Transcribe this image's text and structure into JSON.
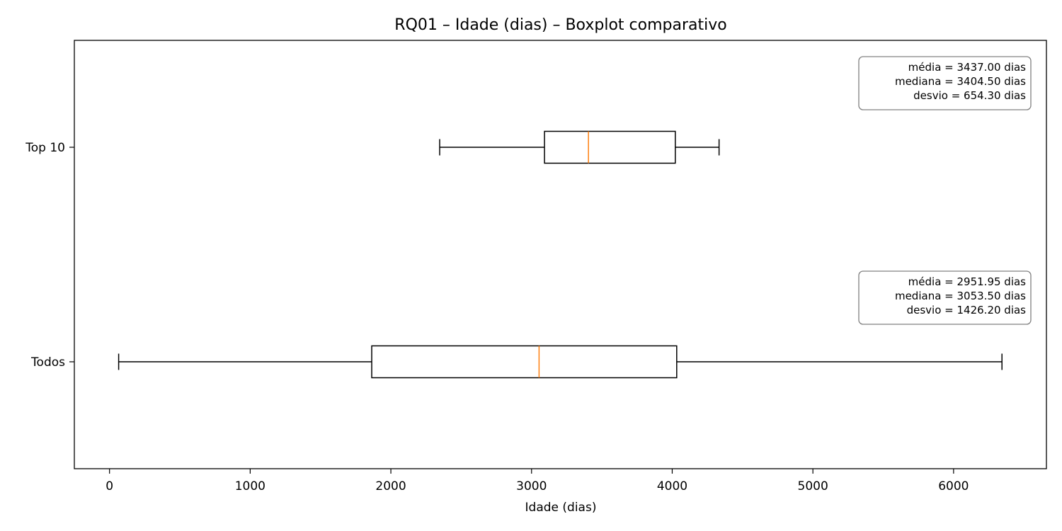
{
  "chart_data": {
    "type": "boxplot",
    "title": "RQ01 – Idade (dias) – Boxplot comparativo",
    "xlabel": "Idade (dias)",
    "ylabel": "",
    "orientation": "horizontal",
    "xlim": [
      -250,
      6660
    ],
    "xticks": [
      0,
      1000,
      2000,
      3000,
      4000,
      5000,
      6000
    ],
    "xtick_labels": [
      "0",
      "1000",
      "2000",
      "3000",
      "4000",
      "5000",
      "6000"
    ],
    "grid": false,
    "median_color": "#ff7f0e",
    "box_color": "#000000",
    "series": [
      {
        "name": "Top 10",
        "whisker_low": 2347,
        "q1": 3092,
        "median": 3404.5,
        "q3": 4022,
        "whisker_high": 4333,
        "stats_lines": [
          "média = 3437.00 dias",
          "mediana = 3404.50 dias",
          "desvio = 654.30 dias"
        ]
      },
      {
        "name": "Todos",
        "whisker_low": 65,
        "q1": 1864,
        "median": 3053.5,
        "q3": 4032,
        "whisker_high": 6344,
        "stats_lines": [
          "média = 2951.95 dias",
          "mediana = 3053.50 dias",
          "desvio = 1426.20 dias"
        ]
      }
    ]
  }
}
